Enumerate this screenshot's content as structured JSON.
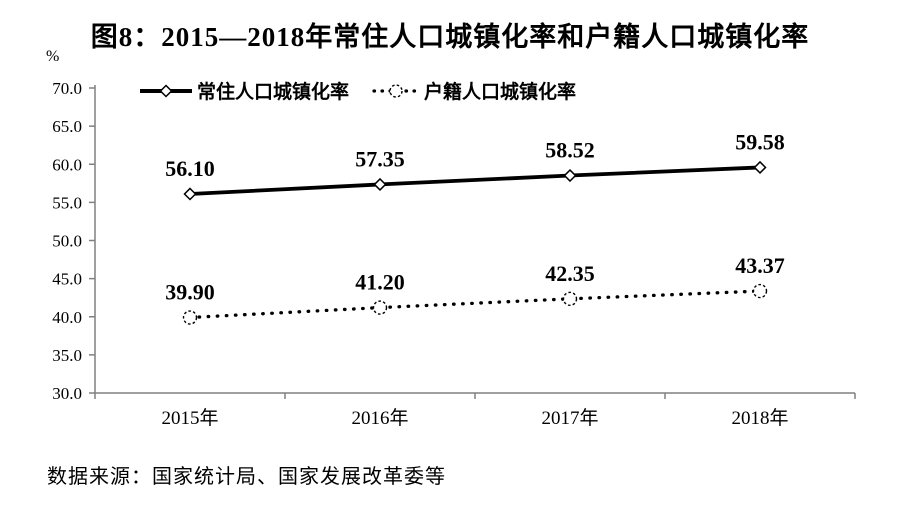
{
  "figure": {
    "title": "图8：2015—2018年常住人口城镇化率和户籍人口城镇化率",
    "unit_label": "%",
    "source": "数据来源：国家统计局、国家发展改革委等"
  },
  "chart_data": {
    "type": "line",
    "title": "图8：2015—2018年常住人口城镇化率和户籍人口城镇化率",
    "categories": [
      "2015年",
      "2016年",
      "2017年",
      "2018年"
    ],
    "series": [
      {
        "name": "常住人口城镇化率",
        "values": [
          56.1,
          57.35,
          58.52,
          59.58
        ],
        "data_labels": [
          "56.10",
          "57.35",
          "58.52",
          "59.58"
        ],
        "line_style": "solid",
        "marker": "diamond"
      },
      {
        "name": "户籍人口城镇化率",
        "values": [
          39.9,
          41.2,
          42.35,
          43.37
        ],
        "data_labels": [
          "39.90",
          "41.20",
          "42.35",
          "43.37"
        ],
        "line_style": "dotted",
        "marker": "circle"
      }
    ],
    "xlabel": "",
    "ylabel": "%",
    "ylim": [
      30.0,
      70.0
    ],
    "ytick_step": 5.0,
    "ytick_labels": [
      "30.0",
      "35.0",
      "40.0",
      "45.0",
      "50.0",
      "55.0",
      "60.0",
      "65.0",
      "70.0"
    ],
    "grid": false,
    "legend_position": "top-inside",
    "colors": {
      "series_line": "#000000",
      "marker_fill": "#ffffff",
      "axis": "#808080",
      "text": "#000000",
      "background": "#ffffff"
    }
  }
}
